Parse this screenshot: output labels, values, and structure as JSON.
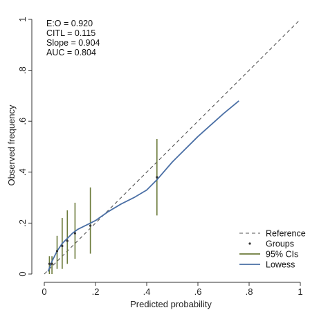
{
  "chart_data": {
    "type": "line",
    "xlabel": "Predicted probability",
    "ylabel": "Observed frequency",
    "xlim": [
      0,
      1
    ],
    "ylim": [
      0,
      1
    ],
    "x_ticks": [
      {
        "value": 0,
        "label": "0"
      },
      {
        "value": 0.2,
        "label": ".2"
      },
      {
        "value": 0.4,
        "label": ".4"
      },
      {
        "value": 0.6,
        "label": ".6"
      },
      {
        "value": 0.8,
        "label": ".8"
      },
      {
        "value": 1,
        "label": "1"
      }
    ],
    "y_ticks": [
      {
        "value": 0,
        "label": "0"
      },
      {
        "value": 0.2,
        "label": ".2"
      },
      {
        "value": 0.4,
        "label": ".4"
      },
      {
        "value": 0.6,
        "label": ".6"
      },
      {
        "value": 0.8,
        "label": ".8"
      },
      {
        "value": 1,
        "label": "1"
      }
    ],
    "grid": false,
    "annotations": [
      "E:O = 0.920",
      "CITL = 0.115",
      "Slope = 0.904",
      "AUC = 0.804"
    ],
    "legend_position": "bottom-right",
    "legend": [
      {
        "label": "Reference",
        "style": "dashed",
        "color": "#555555"
      },
      {
        "label": "Groups",
        "style": "point",
        "color": "#333333"
      },
      {
        "label": "95% CIs",
        "style": "line",
        "color": "#6b7a3a"
      },
      {
        "label": "Lowess",
        "style": "line",
        "color": "#4a6fa5"
      }
    ],
    "series": [
      {
        "name": "Reference",
        "x": [
          0,
          1
        ],
        "y": [
          0,
          1
        ]
      },
      {
        "name": "Groups",
        "x": [
          0.02,
          0.03,
          0.05,
          0.07,
          0.09,
          0.12,
          0.18,
          0.44
        ],
        "y": [
          0.04,
          0.04,
          0.09,
          0.11,
          0.13,
          0.16,
          0.19,
          0.38
        ],
        "ci_low": [
          0.0,
          0.0,
          0.02,
          0.02,
          0.04,
          0.06,
          0.08,
          0.23
        ],
        "ci_high": [
          0.07,
          0.07,
          0.15,
          0.22,
          0.25,
          0.28,
          0.34,
          0.53
        ]
      },
      {
        "name": "Lowess",
        "x": [
          0.015,
          0.03,
          0.05,
          0.07,
          0.09,
          0.11,
          0.13,
          0.16,
          0.2,
          0.25,
          0.3,
          0.35,
          0.4,
          0.44,
          0.5,
          0.6,
          0.7,
          0.76
        ],
        "y": [
          0.01,
          0.05,
          0.09,
          0.12,
          0.14,
          0.16,
          0.175,
          0.19,
          0.21,
          0.245,
          0.275,
          0.3,
          0.33,
          0.37,
          0.44,
          0.54,
          0.63,
          0.68
        ]
      }
    ]
  },
  "colors": {
    "reference": "#555555",
    "groups": "#333333",
    "ci": "#6b7a3a",
    "lowess": "#4a6fa5",
    "axis": "#333333"
  }
}
